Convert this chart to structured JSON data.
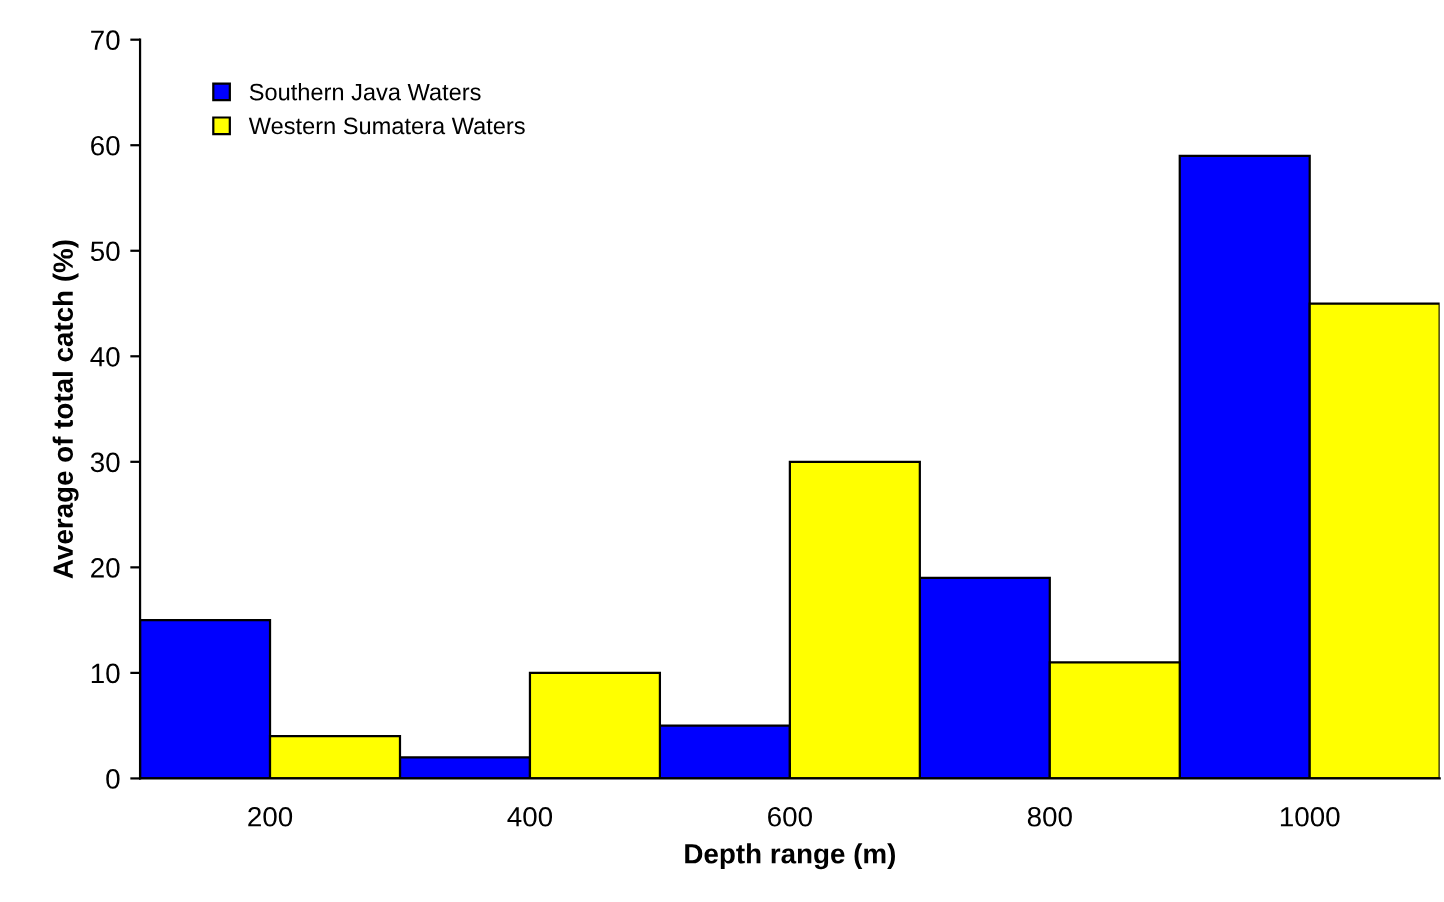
{
  "chart_data": {
    "type": "bar",
    "xlabel": "Depth range (m)",
    "ylabel": "Average of total catch (%)",
    "categories": [
      "200",
      "400",
      "600",
      "800",
      "1000"
    ],
    "series": [
      {
        "name": "Southern Java Waters",
        "color": "#0000ff",
        "values": [
          15,
          2,
          5,
          19,
          59
        ]
      },
      {
        "name": "Western Sumatera Waters",
        "color": "#ffff00",
        "values": [
          4,
          10,
          30,
          11,
          45
        ]
      }
    ],
    "ylim": [
      0,
      70
    ],
    "yticks": [
      0,
      10,
      20,
      30,
      40,
      50,
      60,
      70
    ],
    "grid": false,
    "legend": "top left"
  }
}
